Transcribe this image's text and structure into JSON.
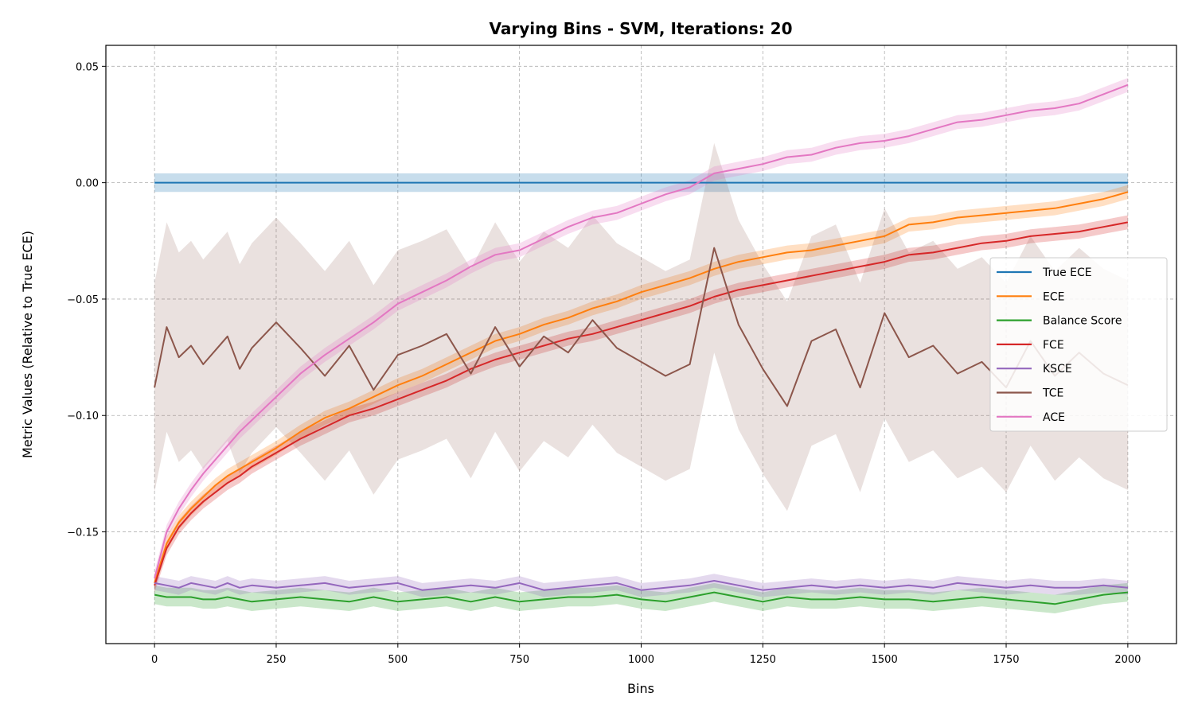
{
  "chart_data": {
    "type": "line",
    "title": "Varying Bins - SVM, Iterations: 20",
    "xlabel": "Bins",
    "ylabel": "Metric Values (Relative to True ECE)",
    "xlim": [
      -100,
      2100
    ],
    "ylim": [
      -0.198,
      0.059
    ],
    "xticks": [
      0,
      250,
      500,
      750,
      1000,
      1250,
      1500,
      1750,
      2000
    ],
    "xtick_labels": [
      "0",
      "250",
      "500",
      "750",
      "1000",
      "1250",
      "1500",
      "1750",
      "2000"
    ],
    "yticks": [
      0.05,
      0.0,
      -0.05,
      -0.1,
      -0.15
    ],
    "ytick_labels": [
      "0.05",
      "0.00",
      "−0.05",
      "−0.10",
      "−0.15"
    ],
    "grid": true,
    "legend_position": "center-right",
    "x": [
      0,
      25,
      50,
      75,
      100,
      125,
      150,
      175,
      200,
      250,
      300,
      350,
      400,
      450,
      500,
      550,
      600,
      650,
      700,
      750,
      800,
      850,
      900,
      950,
      1000,
      1050,
      1100,
      1150,
      1200,
      1250,
      1300,
      1350,
      1400,
      1450,
      1500,
      1550,
      1600,
      1650,
      1700,
      1750,
      1800,
      1850,
      1900,
      1950,
      2000
    ],
    "series": [
      {
        "name": "True ECE",
        "color": "#1f77b4",
        "values": [
          0,
          0,
          0,
          0,
          0,
          0,
          0,
          0,
          0,
          0,
          0,
          0,
          0,
          0,
          0,
          0,
          0,
          0,
          0,
          0,
          0,
          0,
          0,
          0,
          0,
          0,
          0,
          0,
          0,
          0,
          0,
          0,
          0,
          0,
          0,
          0,
          0,
          0,
          0,
          0,
          0,
          0,
          0,
          0,
          0
        ],
        "band": 0.004
      },
      {
        "name": "ECE",
        "color": "#ff7f0e",
        "values": [
          -0.172,
          -0.155,
          -0.146,
          -0.14,
          -0.135,
          -0.13,
          -0.126,
          -0.123,
          -0.12,
          -0.114,
          -0.107,
          -0.101,
          -0.097,
          -0.092,
          -0.087,
          -0.083,
          -0.078,
          -0.073,
          -0.068,
          -0.065,
          -0.061,
          -0.058,
          -0.054,
          -0.051,
          -0.047,
          -0.044,
          -0.041,
          -0.037,
          -0.034,
          -0.032,
          -0.03,
          -0.029,
          -0.027,
          -0.025,
          -0.023,
          -0.018,
          -0.017,
          -0.015,
          -0.014,
          -0.013,
          -0.012,
          -0.011,
          -0.009,
          -0.007,
          -0.004
        ],
        "band": 0.003
      },
      {
        "name": "Balance Score",
        "color": "#2ca02c",
        "values": [
          -0.177,
          -0.178,
          -0.178,
          -0.178,
          -0.179,
          -0.179,
          -0.178,
          -0.179,
          -0.18,
          -0.179,
          -0.178,
          -0.179,
          -0.18,
          -0.178,
          -0.18,
          -0.179,
          -0.178,
          -0.18,
          -0.178,
          -0.18,
          -0.179,
          -0.178,
          -0.178,
          -0.177,
          -0.179,
          -0.18,
          -0.178,
          -0.176,
          -0.178,
          -0.18,
          -0.178,
          -0.179,
          -0.179,
          -0.178,
          -0.179,
          -0.179,
          -0.18,
          -0.179,
          -0.178,
          -0.179,
          -0.18,
          -0.181,
          -0.179,
          -0.177,
          -0.176
        ],
        "band": 0.004
      },
      {
        "name": "FCE",
        "color": "#d62728",
        "values": [
          -0.173,
          -0.157,
          -0.148,
          -0.142,
          -0.137,
          -0.133,
          -0.129,
          -0.126,
          -0.122,
          -0.116,
          -0.11,
          -0.105,
          -0.1,
          -0.097,
          -0.093,
          -0.089,
          -0.085,
          -0.08,
          -0.076,
          -0.073,
          -0.07,
          -0.067,
          -0.065,
          -0.062,
          -0.059,
          -0.056,
          -0.053,
          -0.049,
          -0.046,
          -0.044,
          -0.042,
          -0.04,
          -0.038,
          -0.036,
          -0.034,
          -0.031,
          -0.03,
          -0.028,
          -0.026,
          -0.025,
          -0.023,
          -0.022,
          -0.021,
          -0.019,
          -0.017
        ],
        "band": 0.003
      },
      {
        "name": "KSCE",
        "color": "#9467bd",
        "values": [
          -0.172,
          -0.173,
          -0.174,
          -0.172,
          -0.173,
          -0.174,
          -0.172,
          -0.174,
          -0.173,
          -0.174,
          -0.173,
          -0.172,
          -0.174,
          -0.173,
          -0.172,
          -0.175,
          -0.174,
          -0.173,
          -0.174,
          -0.172,
          -0.175,
          -0.174,
          -0.173,
          -0.172,
          -0.175,
          -0.174,
          -0.173,
          -0.171,
          -0.173,
          -0.175,
          -0.174,
          -0.173,
          -0.174,
          -0.173,
          -0.174,
          -0.173,
          -0.174,
          -0.172,
          -0.173,
          -0.174,
          -0.173,
          -0.174,
          -0.174,
          -0.173,
          -0.174
        ],
        "band": 0.003
      },
      {
        "name": "TCE",
        "color": "#8c564b",
        "values": [
          -0.088,
          -0.062,
          -0.075,
          -0.07,
          -0.078,
          -0.072,
          -0.066,
          -0.08,
          -0.071,
          -0.06,
          -0.071,
          -0.083,
          -0.07,
          -0.089,
          -0.074,
          -0.07,
          -0.065,
          -0.082,
          -0.062,
          -0.079,
          -0.066,
          -0.073,
          -0.059,
          -0.071,
          -0.077,
          -0.083,
          -0.078,
          -0.028,
          -0.061,
          -0.08,
          -0.096,
          -0.068,
          -0.063,
          -0.088,
          -0.056,
          -0.075,
          -0.07,
          -0.082,
          -0.077,
          -0.088,
          -0.068,
          -0.083,
          -0.073,
          -0.082,
          -0.087
        ],
        "band": 0.045
      },
      {
        "name": "ACE",
        "color": "#e377c2",
        "values": [
          -0.17,
          -0.15,
          -0.14,
          -0.132,
          -0.125,
          -0.119,
          -0.113,
          -0.107,
          -0.102,
          -0.092,
          -0.082,
          -0.074,
          -0.067,
          -0.06,
          -0.052,
          -0.047,
          -0.042,
          -0.036,
          -0.031,
          -0.029,
          -0.024,
          -0.019,
          -0.015,
          -0.013,
          -0.009,
          -0.005,
          -0.002,
          0.004,
          0.006,
          0.008,
          0.011,
          0.012,
          0.015,
          0.017,
          0.018,
          0.02,
          0.023,
          0.026,
          0.027,
          0.029,
          0.031,
          0.032,
          0.034,
          0.038,
          0.042
        ],
        "band": 0.003
      }
    ]
  }
}
